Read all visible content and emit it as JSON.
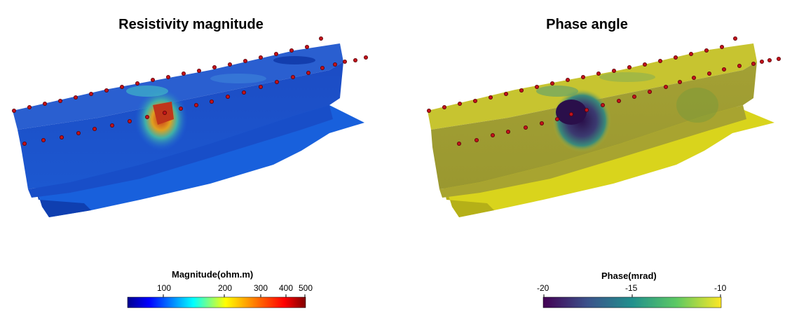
{
  "panels": [
    {
      "title": "Resistivity magnitude",
      "colorbar": {
        "title": "Magnitude(ohm.m)",
        "ticks": [
          "100",
          "200",
          "300",
          "400",
          "500"
        ],
        "colormap": "jet",
        "scale": "log"
      },
      "render_colors": {
        "base": "#1f4fd8",
        "dark": "#0b2f9c",
        "side": "#1a63e0",
        "anomaly": "#d9451a"
      }
    },
    {
      "title": "Phase angle",
      "colorbar": {
        "title": "Phase(mrad)",
        "ticks": [
          "-20",
          "-15",
          "-10"
        ],
        "colormap": "viridis"
      },
      "render_colors": {
        "base": "#c9c43a",
        "dark": "#8c8a2a",
        "side": "#d8d41c",
        "anomaly": "#2a0f4a"
      }
    }
  ],
  "electrode_color": "#c1121a"
}
